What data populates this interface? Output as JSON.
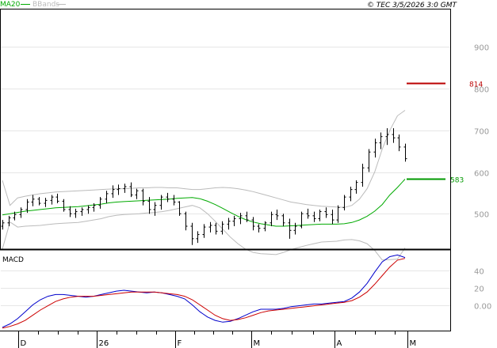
{
  "header": {
    "legend": [
      {
        "label": "MA20",
        "color": "#00aa00"
      },
      {
        "label": "BBands",
        "color": "#bbbbbb"
      }
    ],
    "source_text": "© TEC 3/5/2026 3:0 GMT"
  },
  "chart_data": [
    {
      "type": "line",
      "panel": "price",
      "yticks": [
        "900",
        "800",
        "700",
        "600",
        "500"
      ],
      "ylim": [
        415,
        990
      ],
      "levels": [
        {
          "label": "814",
          "value": 814,
          "color": "#bb0000"
        },
        {
          "label": "583",
          "value": 583,
          "color": "#009900"
        }
      ],
      "x_labels": [
        "D",
        "26",
        "F",
        "M",
        "A",
        "M"
      ],
      "series": [
        {
          "name": "MA20",
          "color": "#00aa00",
          "values": [
            497,
            500,
            503,
            506,
            508,
            510,
            512,
            514,
            515,
            516,
            517,
            519,
            521,
            523,
            526,
            528,
            529,
            530,
            531,
            532,
            533,
            534,
            535,
            537,
            538,
            539,
            536,
            530,
            522,
            513,
            503,
            494,
            486,
            480,
            476,
            473,
            470,
            470,
            471,
            472,
            473,
            474,
            475,
            475,
            475,
            476,
            479,
            485,
            494,
            506,
            522,
            545,
            563,
            583
          ]
        },
        {
          "name": "BBands-upper",
          "color": "#bbbbbb",
          "values": [
            580,
            520,
            538,
            542,
            545,
            548,
            550,
            552,
            553,
            554,
            555,
            556,
            557,
            558,
            559,
            560,
            560,
            561,
            562,
            562,
            563,
            563,
            562,
            562,
            560,
            558,
            558,
            560,
            562,
            563,
            562,
            560,
            557,
            553,
            548,
            543,
            538,
            533,
            528,
            525,
            522,
            520,
            518,
            517,
            516,
            515,
            520,
            535,
            560,
            600,
            655,
            700,
            735,
            748
          ]
        },
        {
          "name": "BBands-lower",
          "color": "#bbbbbb",
          "values": [
            415,
            480,
            468,
            470,
            471,
            472,
            474,
            476,
            477,
            478,
            479,
            482,
            485,
            488,
            493,
            496,
            498,
            499,
            500,
            502,
            503,
            505,
            508,
            512,
            516,
            520,
            514,
            500,
            482,
            463,
            444,
            428,
            415,
            407,
            404,
            403,
            402,
            407,
            414,
            419,
            424,
            428,
            432,
            433,
            434,
            437,
            438,
            435,
            428,
            412,
            389,
            390,
            391,
            418
          ]
        }
      ],
      "ohlc": [
        [
          470,
          485,
          462,
          478
        ],
        [
          478,
          495,
          470,
          490
        ],
        [
          490,
          505,
          484,
          498
        ],
        [
          498,
          515,
          490,
          510
        ],
        [
          510,
          535,
          502,
          528
        ],
        [
          528,
          545,
          518,
          535
        ],
        [
          535,
          540,
          520,
          525
        ],
        [
          525,
          538,
          516,
          532
        ],
        [
          532,
          545,
          522,
          540
        ],
        [
          540,
          548,
          525,
          530
        ],
        [
          530,
          535,
          505,
          510
        ],
        [
          510,
          518,
          492,
          500
        ],
        [
          500,
          512,
          490,
          505
        ],
        [
          505,
          515,
          495,
          510
        ],
        [
          510,
          520,
          500,
          515
        ],
        [
          515,
          525,
          505,
          520
        ],
        [
          520,
          540,
          512,
          535
        ],
        [
          535,
          555,
          525,
          548
        ],
        [
          548,
          568,
          538,
          558
        ],
        [
          558,
          570,
          545,
          560
        ],
        [
          560,
          572,
          550,
          565
        ],
        [
          565,
          575,
          540,
          545
        ],
        [
          545,
          560,
          535,
          555
        ],
        [
          555,
          560,
          520,
          530
        ],
        [
          530,
          540,
          500,
          510
        ],
        [
          510,
          528,
          495,
          520
        ],
        [
          520,
          545,
          510,
          540
        ],
        [
          540,
          550,
          528,
          535
        ],
        [
          535,
          545,
          520,
          528
        ],
        [
          528,
          530,
          495,
          500
        ],
        [
          500,
          505,
          460,
          470
        ],
        [
          470,
          478,
          425,
          440
        ],
        [
          440,
          458,
          430,
          450
        ],
        [
          450,
          475,
          442,
          468
        ],
        [
          468,
          480,
          455,
          472
        ],
        [
          472,
          478,
          450,
          458
        ],
        [
          458,
          482,
          450,
          475
        ],
        [
          475,
          490,
          462,
          482
        ],
        [
          482,
          495,
          470,
          488
        ],
        [
          488,
          502,
          475,
          495
        ],
        [
          495,
          505,
          480,
          485
        ],
        [
          485,
          492,
          460,
          470
        ],
        [
          470,
          475,
          455,
          465
        ],
        [
          465,
          482,
          458,
          478
        ],
        [
          478,
          505,
          470,
          498
        ],
        [
          498,
          510,
          485,
          495
        ],
        [
          495,
          500,
          470,
          478
        ],
        [
          478,
          488,
          440,
          460
        ],
        [
          460,
          478,
          450,
          470
        ],
        [
          470,
          505,
          465,
          500
        ],
        [
          500,
          512,
          488,
          495
        ],
        [
          495,
          505,
          480,
          488
        ],
        [
          488,
          510,
          482,
          505
        ],
        [
          505,
          515,
          490,
          498
        ],
        [
          498,
          510,
          475,
          485
        ],
        [
          485,
          520,
          478,
          515
        ],
        [
          515,
          545,
          508,
          540
        ],
        [
          540,
          565,
          530,
          558
        ],
        [
          558,
          580,
          548,
          575
        ],
        [
          575,
          620,
          565,
          610
        ],
        [
          610,
          655,
          600,
          648
        ],
        [
          648,
          680,
          635,
          670
        ],
        [
          670,
          695,
          655,
          685
        ],
        [
          685,
          705,
          665,
          690
        ],
        [
          690,
          705,
          670,
          682
        ],
        [
          682,
          690,
          650,
          660
        ],
        [
          660,
          668,
          625,
          632
        ]
      ]
    },
    {
      "type": "line",
      "panel": "macd",
      "title": "MACD",
      "yticks": [
        "40",
        "20",
        "0.00"
      ],
      "ylim": [
        -28,
        62
      ],
      "series": [
        {
          "name": "MACD",
          "color": "#0000cc",
          "values": [
            -26,
            -22,
            -16,
            -8,
            0,
            6,
            10,
            12,
            12,
            11,
            10,
            9,
            10,
            12,
            14,
            16,
            17,
            16,
            15,
            14,
            15,
            14,
            12,
            10,
            7,
            0,
            -8,
            -14,
            -18,
            -20,
            -19,
            -16,
            -12,
            -8,
            -5,
            -5,
            -5,
            -4,
            -2,
            -1,
            0,
            1,
            1,
            2,
            3,
            4,
            8,
            15,
            25,
            38,
            50,
            56,
            58,
            55
          ]
        },
        {
          "name": "Signal",
          "color": "#cc0000",
          "values": [
            -27,
            -25,
            -22,
            -18,
            -12,
            -6,
            -1,
            4,
            7,
            9,
            10,
            10,
            10,
            11,
            12,
            13,
            14,
            15,
            15,
            15,
            15,
            14,
            13,
            12,
            10,
            6,
            0,
            -6,
            -12,
            -16,
            -18,
            -17,
            -15,
            -12,
            -9,
            -7,
            -6,
            -5,
            -4,
            -3,
            -2,
            -1,
            0,
            1,
            2,
            3,
            5,
            9,
            15,
            24,
            34,
            44,
            52,
            54
          ]
        }
      ]
    }
  ]
}
